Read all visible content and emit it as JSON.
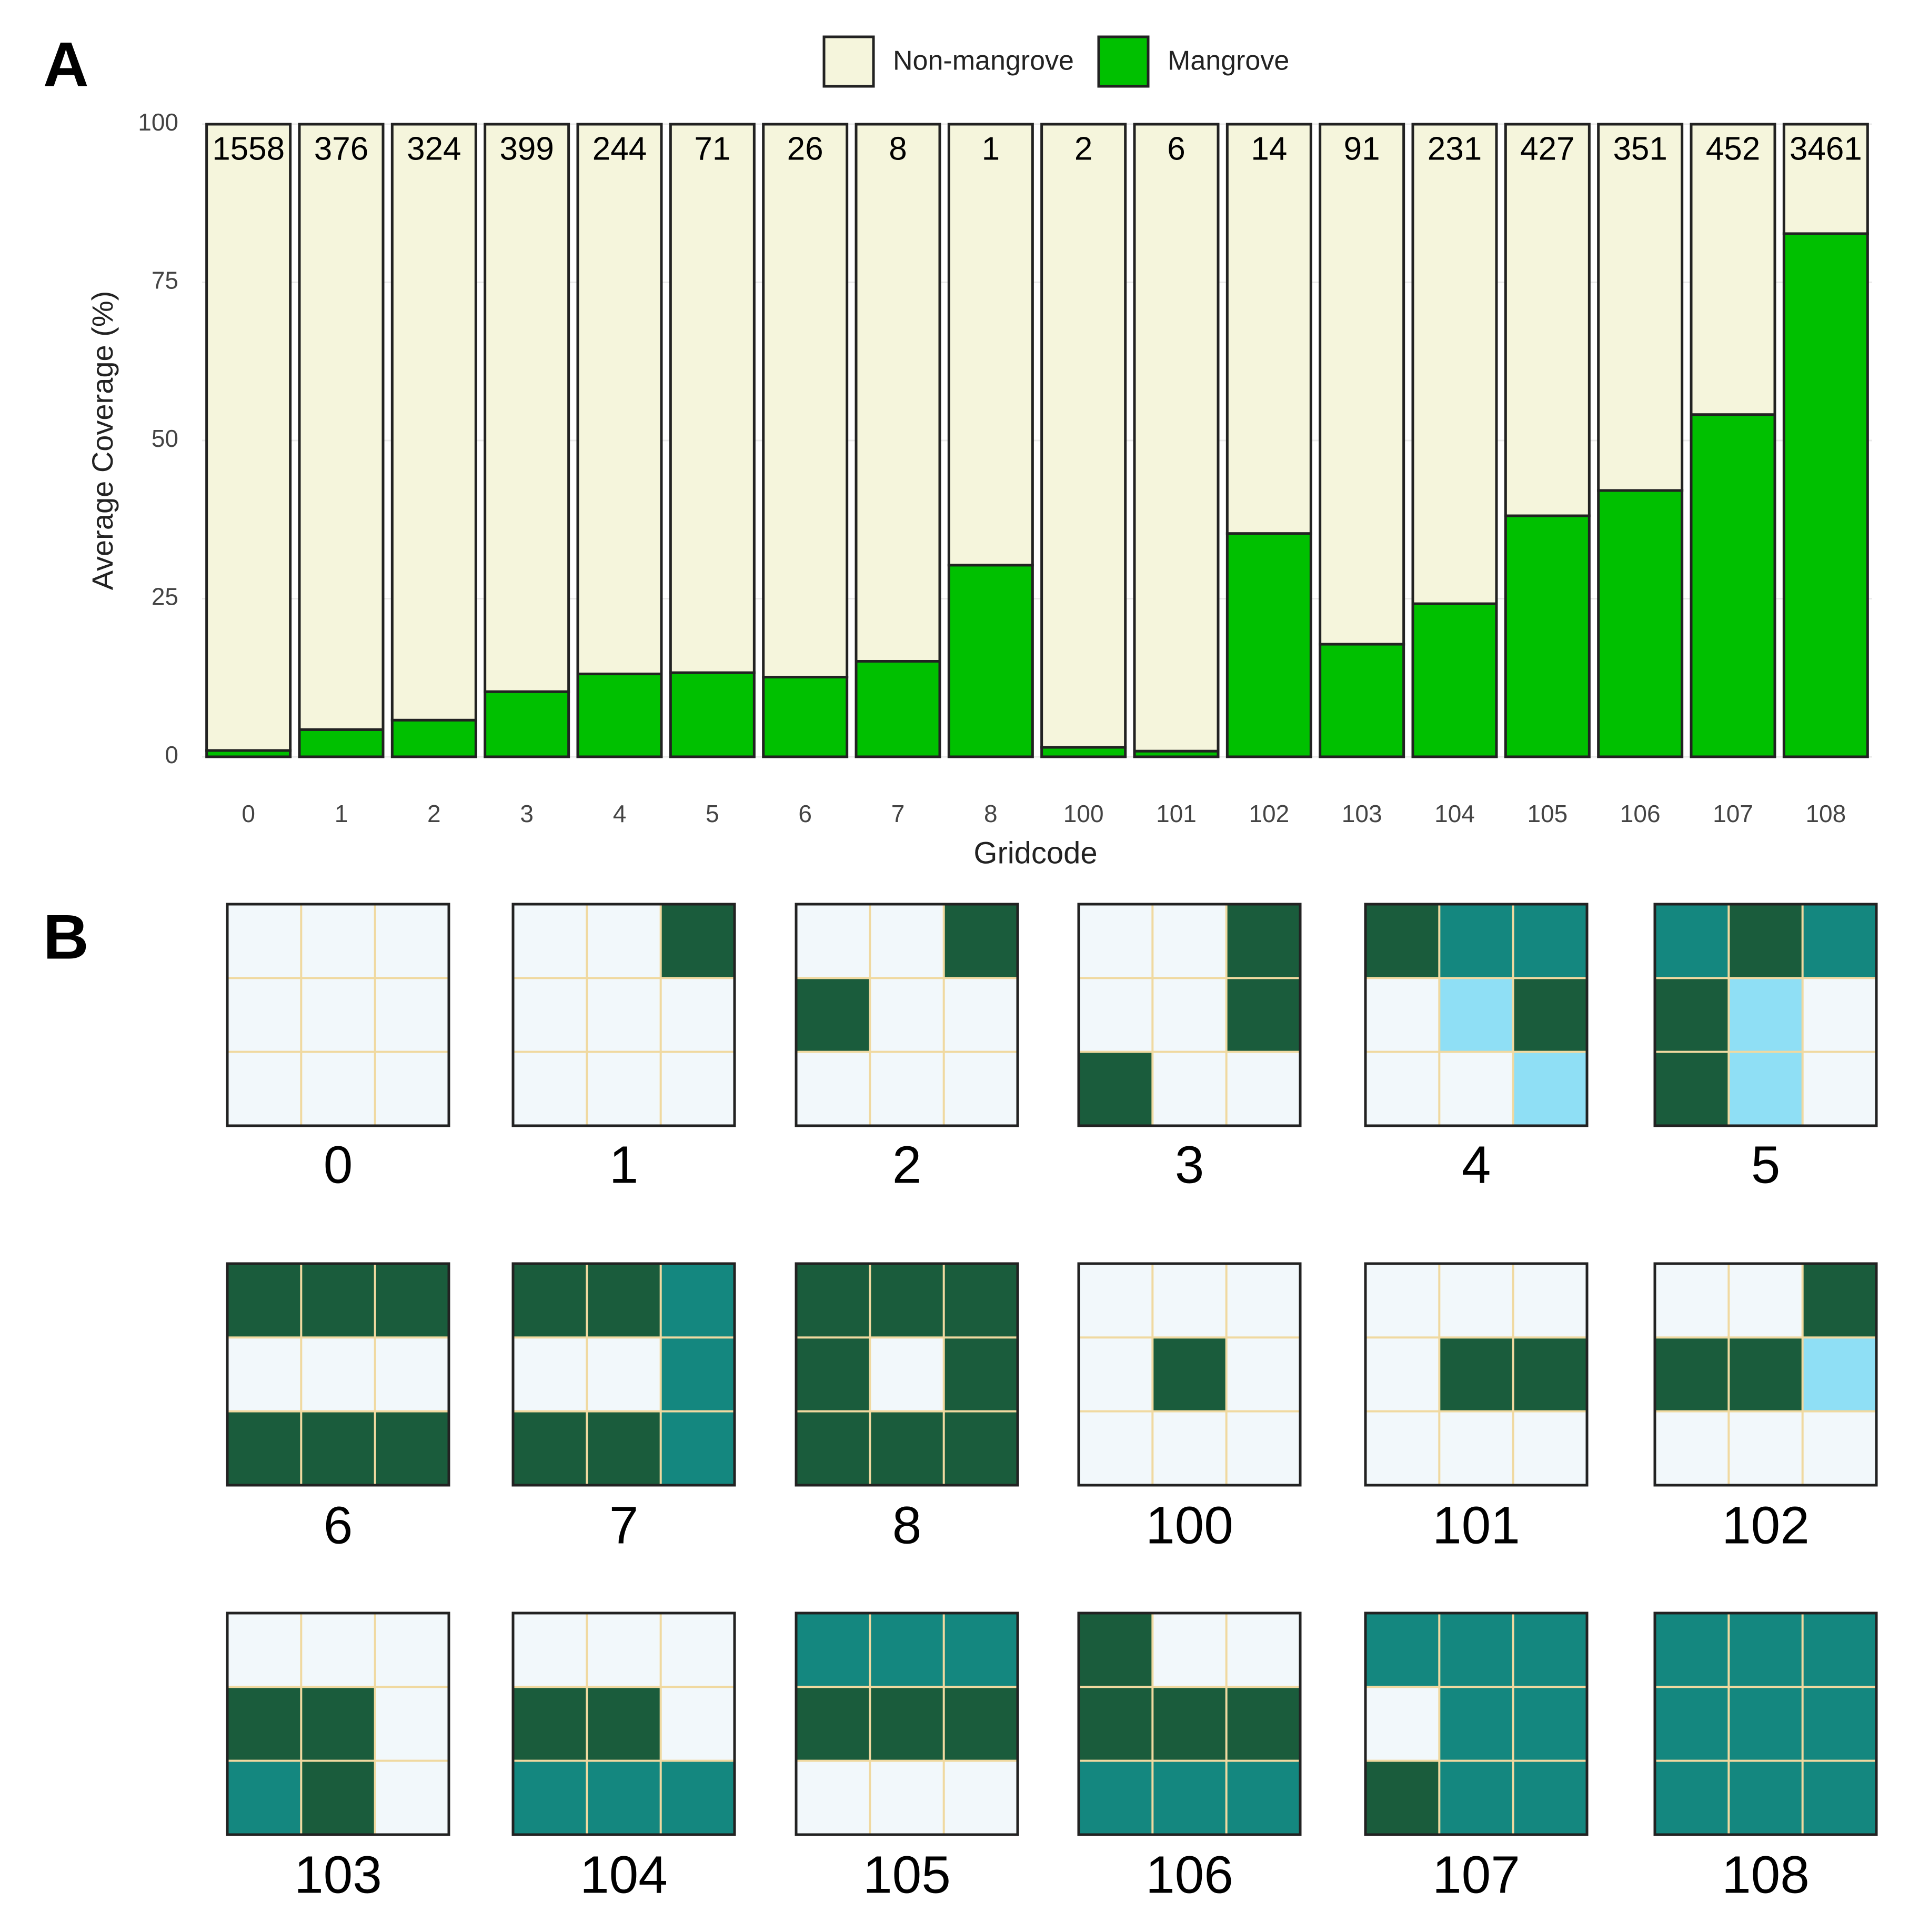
{
  "chart_data": {
    "type": "stacked_bar",
    "panel_label": "A",
    "xlabel": "Gridcode",
    "ylabel": "Average Coverage (%)",
    "categories": [
      "0",
      "1",
      "2",
      "3",
      "4",
      "5",
      "6",
      "7",
      "8",
      "100",
      "101",
      "102",
      "103",
      "104",
      "105",
      "106",
      "107",
      "108"
    ],
    "series": [
      {
        "name": "Mangrove",
        "color": "#00c000",
        "values": [
          1,
          4.3,
          5.8,
          10.3,
          13.1,
          13.3,
          12.6,
          15.1,
          30.3,
          1.5,
          0.9,
          35.3,
          17.8,
          24.2,
          38.1,
          42.1,
          54.1,
          82.7
        ]
      },
      {
        "name": "Non-mangrove",
        "color": "#f5f5dc",
        "values": [
          99,
          95.7,
          94.2,
          89.7,
          86.9,
          86.7,
          87.4,
          84.9,
          69.7,
          98.5,
          99.1,
          64.7,
          82.2,
          75.8,
          61.9,
          57.9,
          45.9,
          17.3
        ]
      }
    ],
    "bar_labels": [
      1558,
      376,
      324,
      399,
      244,
      71,
      26,
      8,
      1,
      2,
      6,
      14,
      91,
      231,
      427,
      351,
      452,
      3461
    ],
    "ylim": [
      0,
      100
    ],
    "yticks": [
      0,
      25,
      50,
      75,
      100
    ],
    "grid": true,
    "legend": "top"
  },
  "panel_b": {
    "label": "B"
  }
}
